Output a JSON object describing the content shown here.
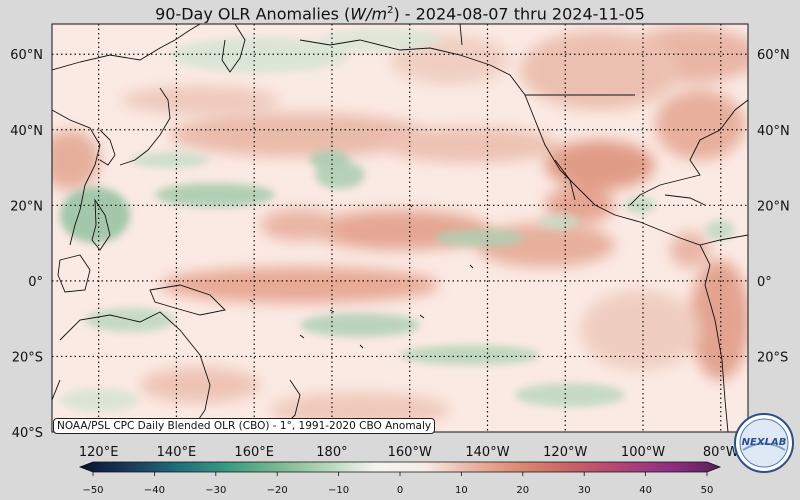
{
  "title": {
    "prefix": "90-Day OLR Anomalies (",
    "units": "W/m",
    "units_exp": "2",
    "suffix": ") - 2024-08-07 thru 2024-11-05"
  },
  "attribution": "NOAA/PSL CPC Daily Blended OLR (CBO) - 1°, 1991-2020 CBO Anomaly",
  "logo_text": "NEXLAB",
  "lat_labels": [
    "60°N",
    "40°N",
    "20°N",
    "0°",
    "20°S",
    "40°S"
  ],
  "lat_values": [
    60,
    40,
    20,
    0,
    -20,
    -40
  ],
  "lon_labels": [
    "120°E",
    "140°E",
    "160°E",
    "180°",
    "160°W",
    "140°W",
    "120°W",
    "100°W",
    "80°W"
  ],
  "lon_values": [
    120,
    140,
    160,
    180,
    200,
    220,
    240,
    260,
    280
  ],
  "extent": {
    "lon_min": 108,
    "lon_max": 287,
    "lat_min": -40,
    "lat_max": 68
  },
  "colorbar": {
    "ticks": [
      "−50",
      "−40",
      "−30",
      "−20",
      "−10",
      "0",
      "10",
      "20",
      "30",
      "40",
      "50"
    ],
    "values": [
      -50,
      -40,
      -30,
      -20,
      -10,
      0,
      10,
      20,
      30,
      40,
      50
    ],
    "min": -50,
    "max": 50,
    "colors": [
      "#08122e",
      "#1a3a5c",
      "#1f6f78",
      "#3a9a82",
      "#78b891",
      "#b4d6b8",
      "#f3f5f0",
      "#f7ece6",
      "#e9b2a1",
      "#d9876f",
      "#c76167",
      "#b24376",
      "#8c2f82",
      "#5a2057"
    ]
  },
  "colors": {
    "background": "#d9d9d9",
    "ocean_base": "#fbeae4",
    "positive": "#d9876f",
    "negative": "#74b08c",
    "coast": "#111111"
  }
}
